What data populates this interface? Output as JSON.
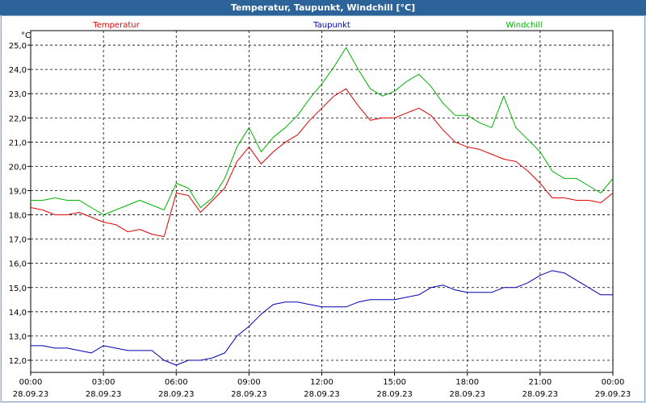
{
  "window": {
    "title": "Temperatur, Taupunkt, Windchill [°C]"
  },
  "chart_data": {
    "type": "line",
    "title": "Temperatur, Taupunkt, Windchill [°C]",
    "ylabel": "°C",
    "ylim": [
      11.5,
      25.6
    ],
    "yticks": [
      "25,0",
      "24,0",
      "23,0",
      "22,0",
      "21,0",
      "20,0",
      "19,0",
      "18,0",
      "17,0",
      "16,0",
      "15,0",
      "14,0",
      "13,0",
      "12,0"
    ],
    "ytick_values": [
      25,
      24,
      23,
      22,
      21,
      20,
      19,
      18,
      17,
      16,
      15,
      14,
      13,
      12
    ],
    "xlim": [
      0,
      24
    ],
    "xticks": [
      {
        "time": "00:00",
        "date": "28.09.23",
        "h": 0
      },
      {
        "time": "03:00",
        "date": "28.09.23",
        "h": 3
      },
      {
        "time": "06:00",
        "date": "28.09.23",
        "h": 6
      },
      {
        "time": "09:00",
        "date": "28.09.23",
        "h": 9
      },
      {
        "time": "12:00",
        "date": "28.09.23",
        "h": 12
      },
      {
        "time": "15:00",
        "date": "28.09.23",
        "h": 15
      },
      {
        "time": "18:00",
        "date": "28.09.23",
        "h": 18
      },
      {
        "time": "21:00",
        "date": "28.09.23",
        "h": 21
      },
      {
        "time": "00:00",
        "date": "29.09.23",
        "h": 24
      }
    ],
    "grid": true,
    "legend_position": "top",
    "x": [
      0,
      0.5,
      1,
      1.5,
      2,
      2.5,
      3,
      3.5,
      4,
      4.5,
      5,
      5.5,
      6,
      6.5,
      7,
      7.5,
      8,
      8.5,
      9,
      9.5,
      10,
      10.5,
      11,
      11.5,
      12,
      12.5,
      13,
      13.5,
      14,
      14.5,
      15,
      15.5,
      16,
      16.5,
      17,
      17.5,
      18,
      18.5,
      19,
      19.5,
      20,
      20.5,
      21,
      21.5,
      22,
      22.5,
      23,
      23.5,
      24
    ],
    "series": [
      {
        "name": "Temperatur",
        "color": "#e00000",
        "values": [
          18.3,
          18.2,
          18.0,
          18.0,
          18.1,
          17.9,
          17.7,
          17.6,
          17.3,
          17.4,
          17.2,
          17.1,
          18.9,
          18.8,
          18.1,
          18.6,
          19.1,
          20.2,
          20.8,
          20.1,
          20.6,
          21.0,
          21.3,
          21.9,
          22.4,
          22.9,
          23.2,
          22.5,
          21.9,
          22.0,
          22.0,
          22.2,
          22.4,
          22.1,
          21.5,
          21.0,
          20.8,
          20.7,
          20.5,
          20.3,
          20.2,
          19.8,
          19.3,
          18.7,
          18.7,
          18.6,
          18.6,
          18.5,
          18.9
        ],
        "line_width": 1
      },
      {
        "name": "Taupunkt",
        "color": "#0000b4",
        "values": [
          12.6,
          12.6,
          12.5,
          12.5,
          12.4,
          12.3,
          12.6,
          12.5,
          12.4,
          12.4,
          12.4,
          12.0,
          11.8,
          12.0,
          12.0,
          12.1,
          12.3,
          13.0,
          13.4,
          13.9,
          14.3,
          14.4,
          14.4,
          14.3,
          14.2,
          14.2,
          14.2,
          14.4,
          14.5,
          14.5,
          14.5,
          14.6,
          14.7,
          15.0,
          15.1,
          14.9,
          14.8,
          14.8,
          14.8,
          15.0,
          15.0,
          15.2,
          15.5,
          15.7,
          15.6,
          15.3,
          15.0,
          14.7,
          14.7
        ],
        "line_width": 1
      },
      {
        "name": "Windchill",
        "color": "#00b400",
        "values": [
          18.6,
          18.6,
          18.7,
          18.6,
          18.6,
          18.3,
          18.0,
          18.2,
          18.4,
          18.6,
          18.4,
          18.2,
          19.3,
          19.1,
          18.3,
          18.7,
          19.5,
          20.8,
          21.6,
          20.6,
          21.2,
          21.6,
          22.1,
          22.8,
          23.4,
          24.1,
          24.9,
          24.0,
          23.2,
          22.9,
          23.1,
          23.5,
          23.8,
          23.3,
          22.6,
          22.1,
          22.1,
          21.8,
          21.6,
          22.9,
          21.6,
          21.1,
          20.6,
          19.8,
          19.5,
          19.5,
          19.2,
          18.9,
          19.5
        ],
        "line_width": 1
      }
    ]
  }
}
